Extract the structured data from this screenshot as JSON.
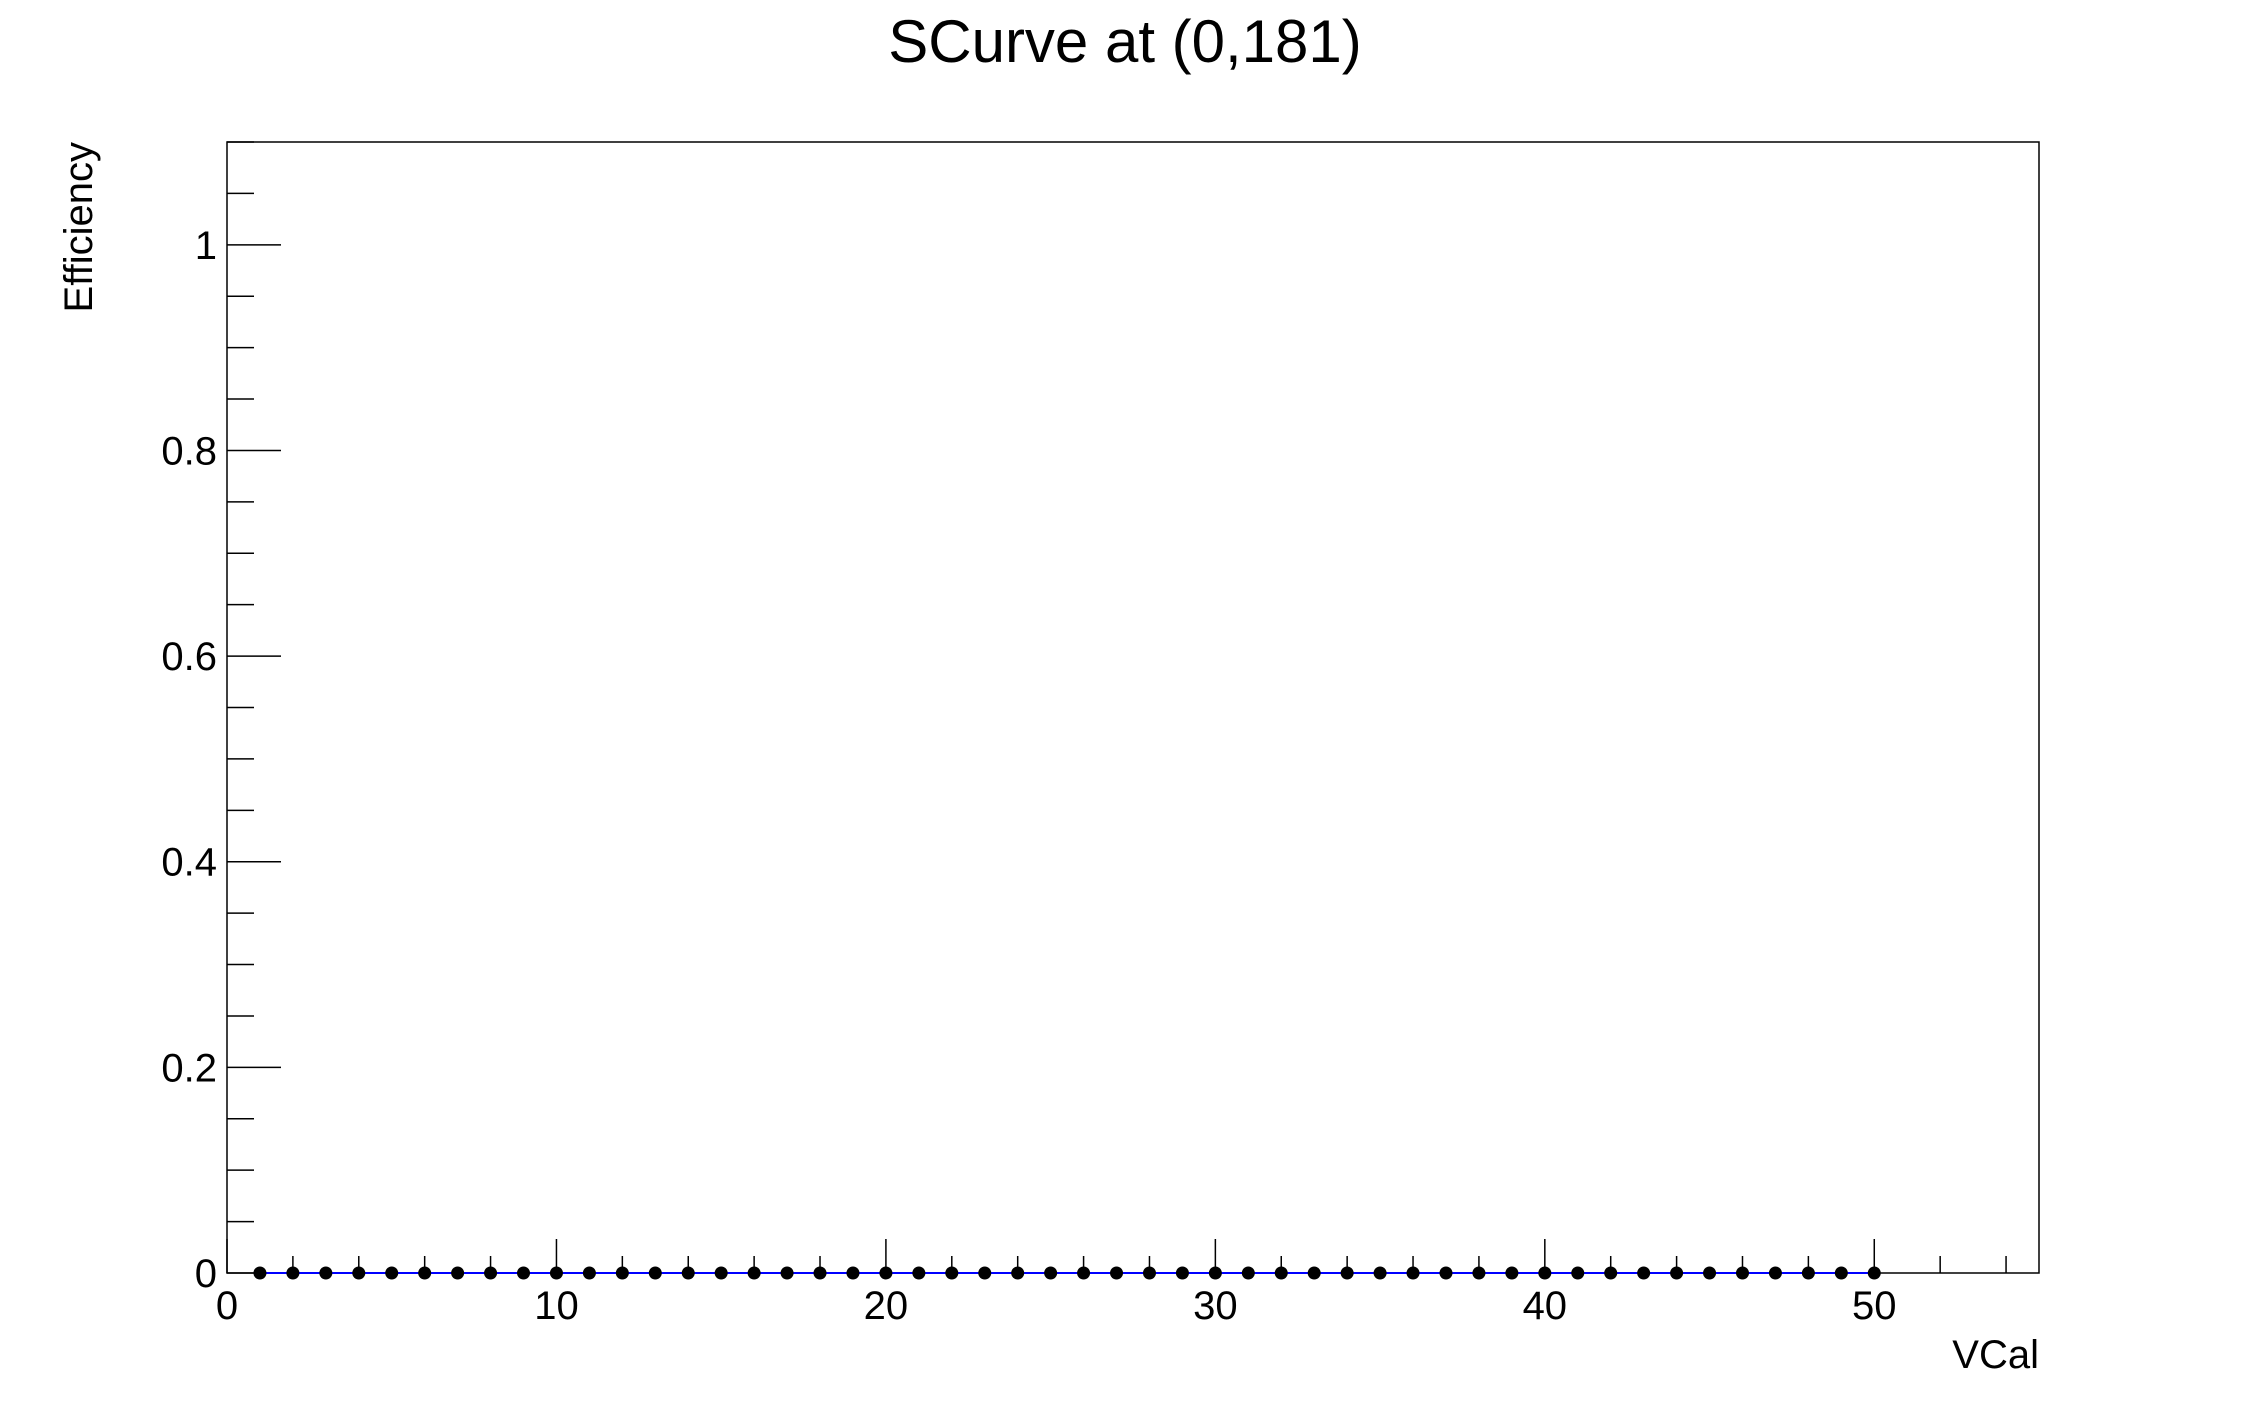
{
  "chart_data": {
    "type": "scatter",
    "title": "SCurve at (0,181)",
    "xlabel": "VCal",
    "ylabel": "Efficiency",
    "xlim": [
      0,
      55
    ],
    "ylim": [
      0,
      1.1
    ],
    "x_ticks": [
      0,
      10,
      20,
      30,
      40,
      50
    ],
    "x_tick_labels": [
      "0",
      "10",
      "20",
      "30",
      "40",
      "50"
    ],
    "y_ticks": [
      0,
      0.2,
      0.4,
      0.6,
      0.8,
      1
    ],
    "y_tick_labels": [
      "0",
      "0.2",
      "0.4",
      "0.6",
      "0.8",
      "1"
    ],
    "grid": false,
    "marker_color": "#000000",
    "line_color": "#0000ff",
    "series": [
      {
        "x": [
          1,
          2,
          3,
          4,
          5,
          6,
          7,
          8,
          9,
          10,
          11,
          12,
          13,
          14,
          15,
          16,
          17,
          18,
          19,
          20,
          21,
          22,
          23,
          24,
          25,
          26,
          27,
          28,
          29,
          30,
          31,
          32,
          33,
          34,
          35,
          36,
          37,
          38,
          39,
          40,
          41,
          42,
          43,
          44,
          45,
          46,
          47,
          48,
          49,
          50
        ],
        "y": [
          0,
          0,
          0,
          0,
          0,
          0,
          0,
          0,
          0,
          0,
          0,
          0,
          0,
          0,
          0,
          0,
          0,
          0,
          0,
          0,
          0,
          0,
          0,
          0,
          0,
          0,
          0,
          0,
          0,
          0,
          0,
          0,
          0,
          0,
          0,
          0,
          0,
          0,
          0,
          0,
          0,
          0,
          0,
          0,
          0,
          0,
          0,
          0,
          0,
          0
        ]
      }
    ]
  }
}
